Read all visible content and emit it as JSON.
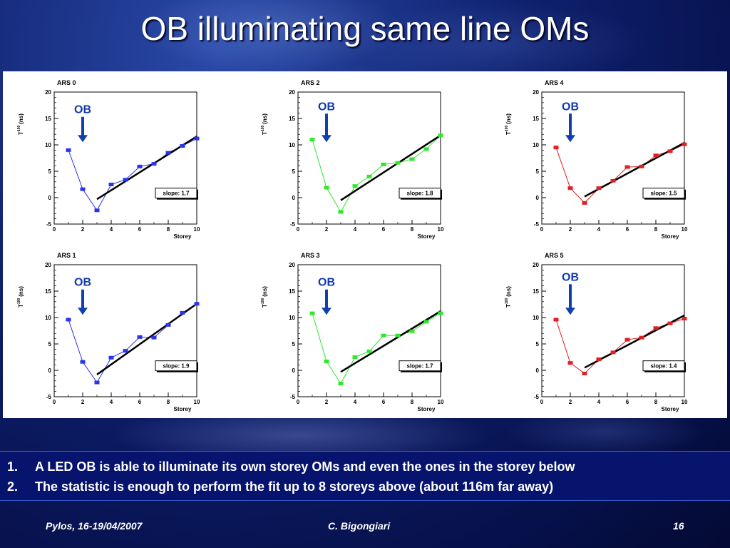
{
  "slide": {
    "title": "OB illuminating same line OMs",
    "notes": [
      {
        "num": "1.",
        "text": "A LED OB is able to illuminate its own storey OMs and even the ones in the storey below"
      },
      {
        "num": "2.",
        "text": "The statistic is enough to perform the fit up  to 8 storeys above (about 116m far away)"
      }
    ],
    "footer": {
      "left": "Pylos, 16-19/04/2007",
      "center": "C. Bigongiari",
      "right": "16"
    }
  },
  "colors": {
    "blue": "#2a34ee",
    "green": "#2ee82e",
    "red": "#e02020",
    "fit": "#000000",
    "arrow": "#1040b0",
    "ob_label": "#1038b0"
  },
  "icons": {
    "arrow": "down-arrow-icon"
  },
  "chart_data": [
    {
      "type": "scatter",
      "title": "ARS 0",
      "ob_label": "OB",
      "ob_storey": 2,
      "slope_label": "slope: 1.7",
      "color": "blue",
      "xlabel": "Storey",
      "ylabel": "T",
      "ylabel_sup": "100",
      "ylabel_unit": "(ns)",
      "xlim": [
        0,
        10
      ],
      "ylim": [
        -5,
        20
      ],
      "xticks": [
        0,
        2,
        4,
        6,
        8,
        10
      ],
      "yticks": [
        -5,
        0,
        5,
        10,
        15,
        20
      ],
      "x": [
        1,
        2,
        3,
        4,
        5,
        6,
        7,
        8,
        9,
        10
      ],
      "y": [
        9.0,
        1.6,
        -2.4,
        2.5,
        3.4,
        5.9,
        6.4,
        8.5,
        9.8,
        11.2
      ],
      "fit": {
        "x": [
          3,
          10
        ],
        "y": [
          -0.3,
          11.6
        ]
      }
    },
    {
      "type": "scatter",
      "title": "ARS 2",
      "ob_label": "OB",
      "ob_storey": 2,
      "slope_label": "slope: 1.8",
      "color": "green",
      "xlabel": "Storey",
      "ylabel": "T",
      "ylabel_sup": "100",
      "ylabel_unit": "(ns)",
      "xlim": [
        0,
        10
      ],
      "ylim": [
        -5,
        20
      ],
      "xticks": [
        0,
        2,
        4,
        6,
        8,
        10
      ],
      "yticks": [
        -5,
        0,
        5,
        10,
        15,
        20
      ],
      "x": [
        1,
        2,
        3,
        4,
        5,
        6,
        7,
        8,
        9,
        10
      ],
      "y": [
        11.0,
        1.9,
        -2.7,
        2.2,
        4.0,
        6.3,
        6.6,
        7.3,
        9.2,
        11.8
      ],
      "fit": {
        "x": [
          3,
          10
        ],
        "y": [
          -0.5,
          11.8
        ]
      }
    },
    {
      "type": "scatter",
      "title": "ARS 4",
      "ob_label": "OB",
      "ob_storey": 2,
      "slope_label": "slope: 1.5",
      "color": "red",
      "xlabel": "Storey",
      "ylabel": "T",
      "ylabel_sup": "100",
      "ylabel_unit": "(ns)",
      "xlim": [
        0,
        10
      ],
      "ylim": [
        -5,
        20
      ],
      "xticks": [
        0,
        2,
        4,
        6,
        8,
        10
      ],
      "yticks": [
        -5,
        0,
        5,
        10,
        15,
        20
      ],
      "x": [
        1,
        2,
        3,
        4,
        5,
        6,
        7,
        8,
        9,
        10
      ],
      "y": [
        9.5,
        1.8,
        -1.0,
        1.8,
        3.2,
        5.8,
        5.9,
        8.0,
        8.8,
        10.1
      ],
      "fit": {
        "x": [
          3,
          10
        ],
        "y": [
          0.2,
          10.4
        ]
      }
    },
    {
      "type": "scatter",
      "title": "ARS 1",
      "ob_label": "OB",
      "ob_storey": 2,
      "slope_label": "slope: 1.9",
      "color": "blue",
      "xlabel": "Storey",
      "ylabel": "T",
      "ylabel_sup": "100",
      "ylabel_unit": "(ns)",
      "xlim": [
        0,
        10
      ],
      "ylim": [
        -5,
        20
      ],
      "xticks": [
        0,
        2,
        4,
        6,
        8,
        10
      ],
      "yticks": [
        -5,
        0,
        5,
        10,
        15,
        20
      ],
      "x": [
        1,
        2,
        3,
        4,
        5,
        6,
        7,
        8,
        9,
        10
      ],
      "y": [
        9.6,
        1.6,
        -2.3,
        2.4,
        3.7,
        6.3,
        6.2,
        8.6,
        10.9,
        12.6
      ],
      "fit": {
        "x": [
          3,
          10
        ],
        "y": [
          -0.8,
          12.6
        ]
      }
    },
    {
      "type": "scatter",
      "title": "ARS 3",
      "ob_label": "OB",
      "ob_storey": 2,
      "slope_label": "slope: 1.7",
      "color": "green",
      "xlabel": "Storey",
      "ylabel": "T",
      "ylabel_sup": "100",
      "ylabel_unit": "(ns)",
      "xlim": [
        0,
        10
      ],
      "ylim": [
        -5,
        20
      ],
      "xticks": [
        0,
        2,
        4,
        6,
        8,
        10
      ],
      "yticks": [
        -5,
        0,
        5,
        10,
        15,
        20
      ],
      "x": [
        1,
        2,
        3,
        4,
        5,
        6,
        7,
        8,
        9,
        10
      ],
      "y": [
        10.8,
        1.7,
        -2.5,
        2.5,
        3.6,
        6.6,
        6.6,
        7.4,
        9.2,
        10.8
      ],
      "fit": {
        "x": [
          3,
          10
        ],
        "y": [
          -0.3,
          11.2
        ]
      }
    },
    {
      "type": "scatter",
      "title": "ARS 5",
      "ob_label": "OB",
      "ob_storey": 2,
      "slope_label": "slope: 1.4",
      "color": "red",
      "xlabel": "Storey",
      "ylabel": "T",
      "ylabel_sup": "100",
      "ylabel_unit": "(ns)",
      "xlim": [
        0,
        10
      ],
      "ylim": [
        -5,
        20
      ],
      "xticks": [
        0,
        2,
        4,
        6,
        8,
        10
      ],
      "yticks": [
        -5,
        0,
        5,
        10,
        15,
        20
      ],
      "x": [
        1,
        2,
        3,
        4,
        5,
        6,
        7,
        8,
        9,
        10
      ],
      "y": [
        9.6,
        1.4,
        -0.6,
        2.1,
        3.4,
        5.8,
        6.2,
        8.0,
        8.9,
        9.8
      ],
      "fit": {
        "x": [
          3,
          10
        ],
        "y": [
          0.5,
          10.4
        ]
      }
    }
  ]
}
